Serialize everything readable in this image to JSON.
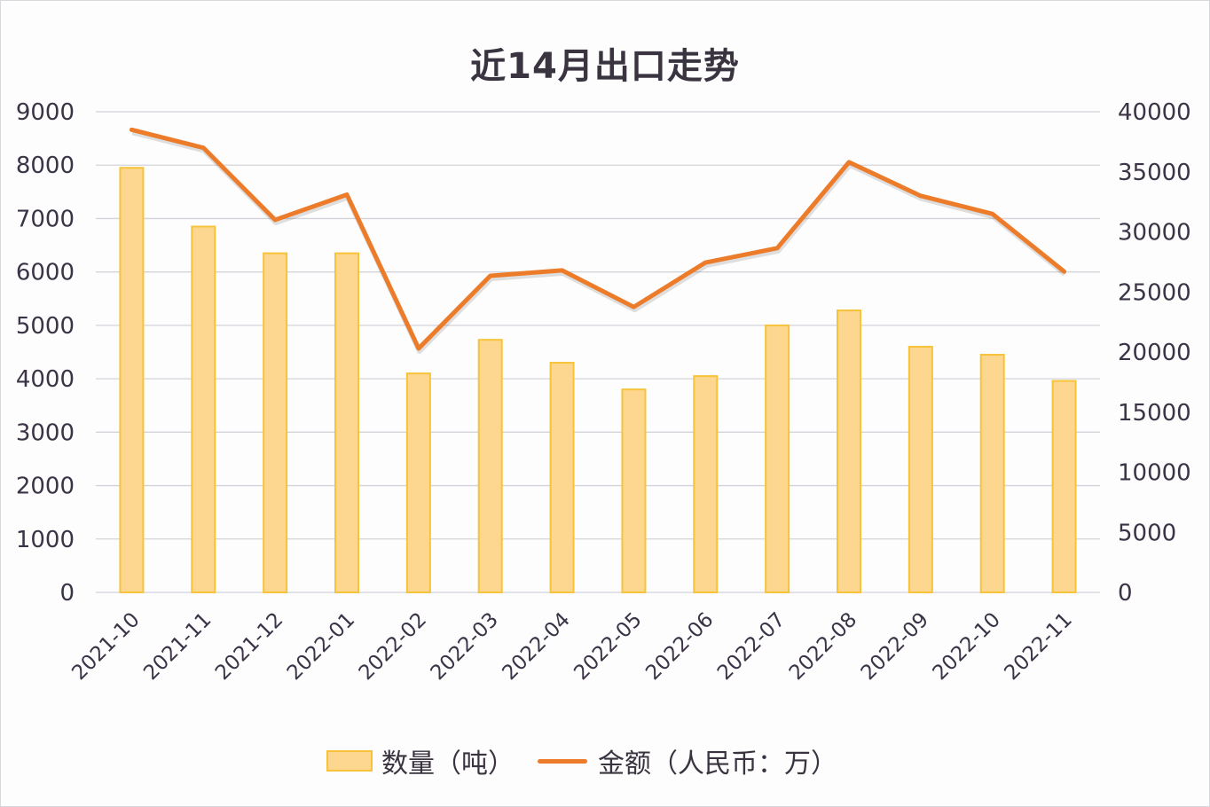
{
  "chart_data": {
    "type": "bar",
    "title": "近14月出口走势",
    "categories": [
      "2021-10",
      "2021-11",
      "2021-12",
      "2022-01",
      "2022-02",
      "2022-03",
      "2022-04",
      "2022-05",
      "2022-06",
      "2022-07",
      "2022-08",
      "2022-09",
      "2022-10",
      "2022-11"
    ],
    "series": [
      {
        "name": "数量（吨）",
        "type": "bar",
        "axis": "left",
        "color": "#fdd68f",
        "border": "#f6c33a",
        "values": [
          7950,
          6850,
          6350,
          6350,
          4100,
          4730,
          4300,
          3800,
          4050,
          5000,
          5280,
          4600,
          4450,
          3960
        ]
      },
      {
        "name": "金额（人民币：万）",
        "type": "line",
        "axis": "right",
        "color": "#ec7c2a",
        "values": [
          38500,
          37000,
          31000,
          33100,
          20300,
          26350,
          26800,
          23750,
          27450,
          28650,
          35800,
          33000,
          31500,
          26700
        ]
      }
    ],
    "y_left": {
      "min": 0,
      "max": 9000,
      "step": 1000,
      "ticks": [
        "0",
        "1000",
        "2000",
        "3000",
        "4000",
        "5000",
        "6000",
        "7000",
        "8000",
        "9000"
      ]
    },
    "y_right": {
      "min": 0,
      "max": 40000,
      "step": 5000,
      "ticks": [
        "0",
        "5000",
        "10000",
        "15000",
        "20000",
        "25000",
        "30000",
        "35000",
        "40000"
      ]
    },
    "xlabel": "",
    "ylabel": "",
    "grid": true,
    "legend_position": "bottom"
  },
  "legend": {
    "bar_label": "数量（吨）",
    "line_label": "金额（人民币：万）"
  }
}
